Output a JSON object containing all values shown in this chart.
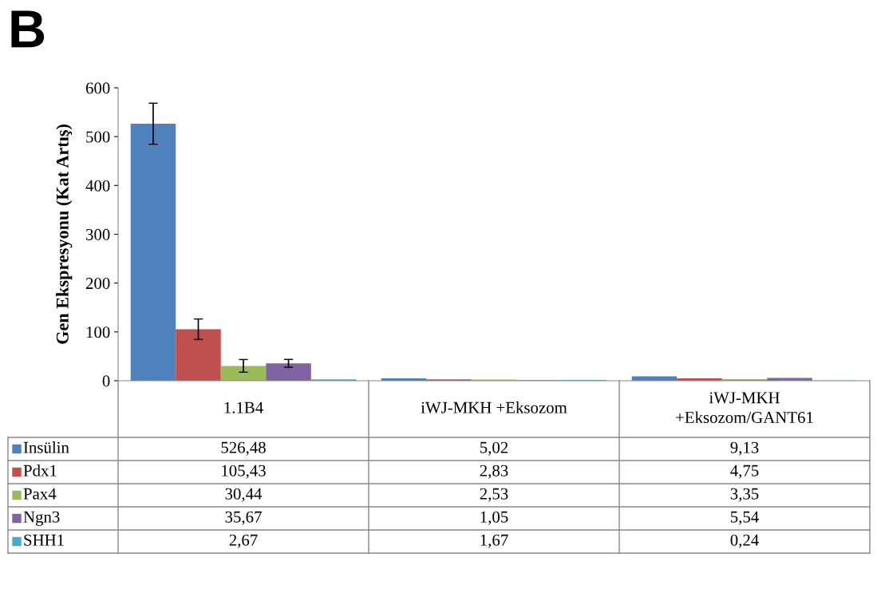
{
  "chart_data": {
    "type": "bar",
    "title": "B",
    "ylabel": "Gen Ekspresyonu (Kat Artış)",
    "categories": [
      "1.1B4",
      "iWJ-MKH +Eksozom",
      "iWJ-MKH\n+Eksozom/GANT61"
    ],
    "ylim": [
      0,
      600
    ],
    "yticks": [
      0,
      100,
      200,
      300,
      400,
      500,
      600
    ],
    "grid": false,
    "legend": "bottom",
    "series": [
      {
        "name": "Insülin",
        "color": "#4f81bd",
        "values": [
          526.48,
          5.02,
          9.13
        ],
        "errors": [
          42,
          null,
          null
        ],
        "value_labels": [
          "526,48",
          "5,02",
          "9,13"
        ]
      },
      {
        "name": "Pdx1",
        "color": "#c0504d",
        "values": [
          105.43,
          2.83,
          4.75
        ],
        "errors": [
          21,
          null,
          null
        ],
        "value_labels": [
          "105,43",
          "2,83",
          "4,75"
        ]
      },
      {
        "name": "Pax4",
        "color": "#9bbb59",
        "values": [
          30.44,
          2.53,
          3.35
        ],
        "errors": [
          13,
          null,
          null
        ],
        "value_labels": [
          "30,44",
          "2,53",
          "3,35"
        ]
      },
      {
        "name": "Ngn3",
        "color": "#8064a2",
        "values": [
          35.67,
          1.05,
          5.54
        ],
        "errors": [
          8,
          null,
          null
        ],
        "value_labels": [
          "35,67",
          "1,05",
          "5,54"
        ]
      },
      {
        "name": "SHH1",
        "color": "#4bacc6",
        "values": [
          2.67,
          1.67,
          0.24
        ],
        "errors": [
          null,
          null,
          null
        ],
        "value_labels": [
          "2,67",
          "1,67",
          "0,24"
        ]
      }
    ]
  }
}
